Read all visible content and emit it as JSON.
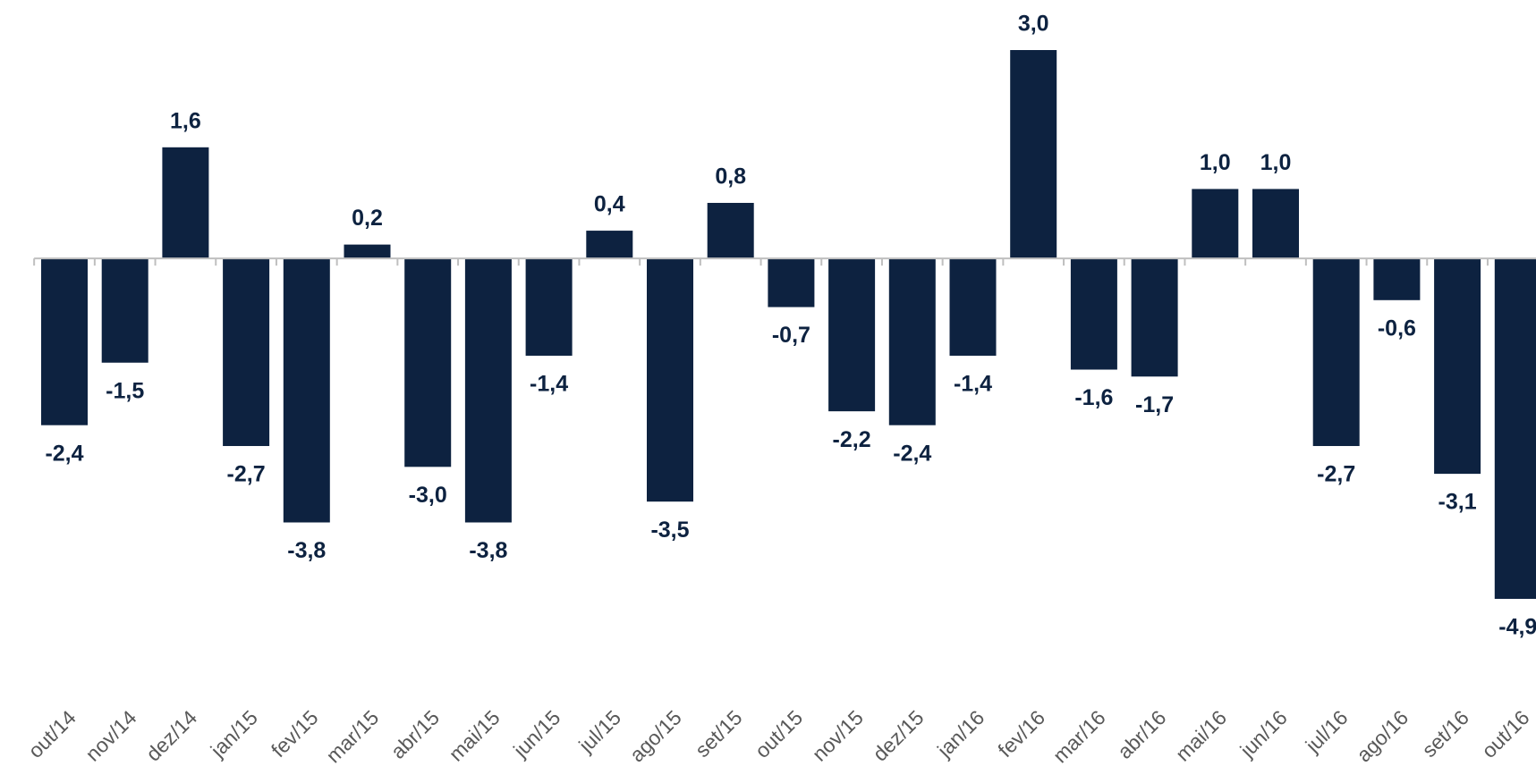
{
  "chart_data": {
    "type": "bar",
    "categories": [
      "out/14",
      "nov/14",
      "dez/14",
      "jan/15",
      "fev/15",
      "mar/15",
      "abr/15",
      "mai/15",
      "jun/15",
      "jul/15",
      "ago/15",
      "set/15",
      "out/15",
      "nov/15",
      "dez/15",
      "jan/16",
      "fev/16",
      "mar/16",
      "abr/16",
      "mai/16",
      "jun/16",
      "jul/16",
      "ago/16",
      "set/16",
      "out/16"
    ],
    "values": [
      -2.4,
      -1.5,
      1.6,
      -2.7,
      -3.8,
      0.2,
      -3.0,
      -3.8,
      -1.4,
      0.4,
      -3.5,
      0.8,
      -0.7,
      -2.2,
      -2.4,
      -1.4,
      3.0,
      -1.6,
      -1.7,
      1.0,
      1.0,
      -2.7,
      -0.6,
      -3.1,
      -4.9
    ],
    "value_labels": [
      "-2,4",
      "-1,5",
      "1,6",
      "-2,7",
      "-3,8",
      "0,2",
      "-3,0",
      "-3,8",
      "-1,4",
      "0,4",
      "-3,5",
      "0,8",
      "-0,7",
      "-2,2",
      "-2,4",
      "-1,4",
      "3,0",
      "-1,6",
      "-1,7",
      "1,0",
      "1,0",
      "-2,7",
      "-0,6",
      "-3,1",
      "-4,9"
    ],
    "color": "#0d2240"
  }
}
